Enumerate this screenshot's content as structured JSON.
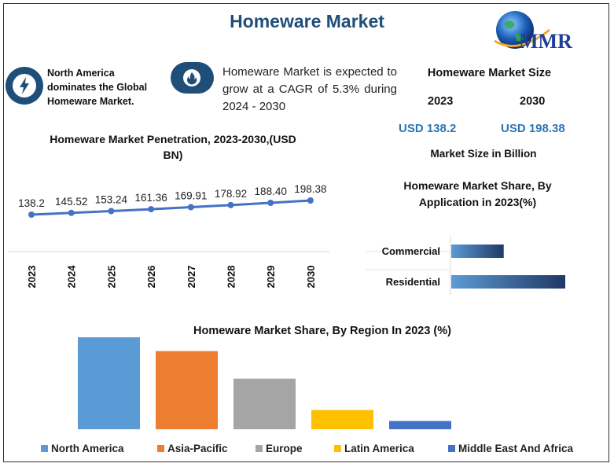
{
  "title": "Homeware Market",
  "logo_text": "MMR",
  "highlights": {
    "north_america": "North America dominates the Global Homeware Market.",
    "cagr": "Homeware Market is expected to grow at a CAGR of 5.3% during 2024 - 2030"
  },
  "market_size": {
    "title": "Homeware Market Size",
    "year1": "2023",
    "year2": "2030",
    "value1": "USD 138.2",
    "value2": "USD 198.38",
    "unit": "Market Size in Billion"
  },
  "colors": {
    "title": "#1f4e79",
    "line": "#4472c4",
    "accent_blue": "#2e75b6"
  },
  "chart_data": [
    {
      "type": "line",
      "title": "Homeware Market Penetration, 2023-2030,(USD BN)",
      "x": [
        "2023",
        "2024",
        "2025",
        "2026",
        "2027",
        "2028",
        "2029",
        "2030"
      ],
      "values": [
        138.2,
        145.52,
        153.24,
        161.36,
        169.91,
        178.92,
        188.4,
        198.38
      ],
      "labels": [
        "138.2",
        "145.52",
        "153.24",
        "161.36",
        "169.91",
        "178.92",
        "188.40",
        "198.38"
      ],
      "grid": false
    },
    {
      "type": "bar",
      "orientation": "horizontal",
      "title": "Homeware Market Share, By Application in 2023(%)",
      "categories": [
        "Commercial",
        "Residential"
      ],
      "values": [
        46,
        100
      ]
    },
    {
      "type": "bar",
      "title": "Homeware Market Share, By Region In 2023 (%)",
      "categories": [
        "North America",
        "Asia-Pacific",
        "Europe",
        "Latin America",
        "Middle East And Africa"
      ],
      "values": [
        100,
        85,
        55,
        21,
        9
      ],
      "colors": [
        "#5b9bd5",
        "#ed7d31",
        "#a5a5a5",
        "#ffc000",
        "#4472c4"
      ],
      "legend": "bottom"
    }
  ]
}
